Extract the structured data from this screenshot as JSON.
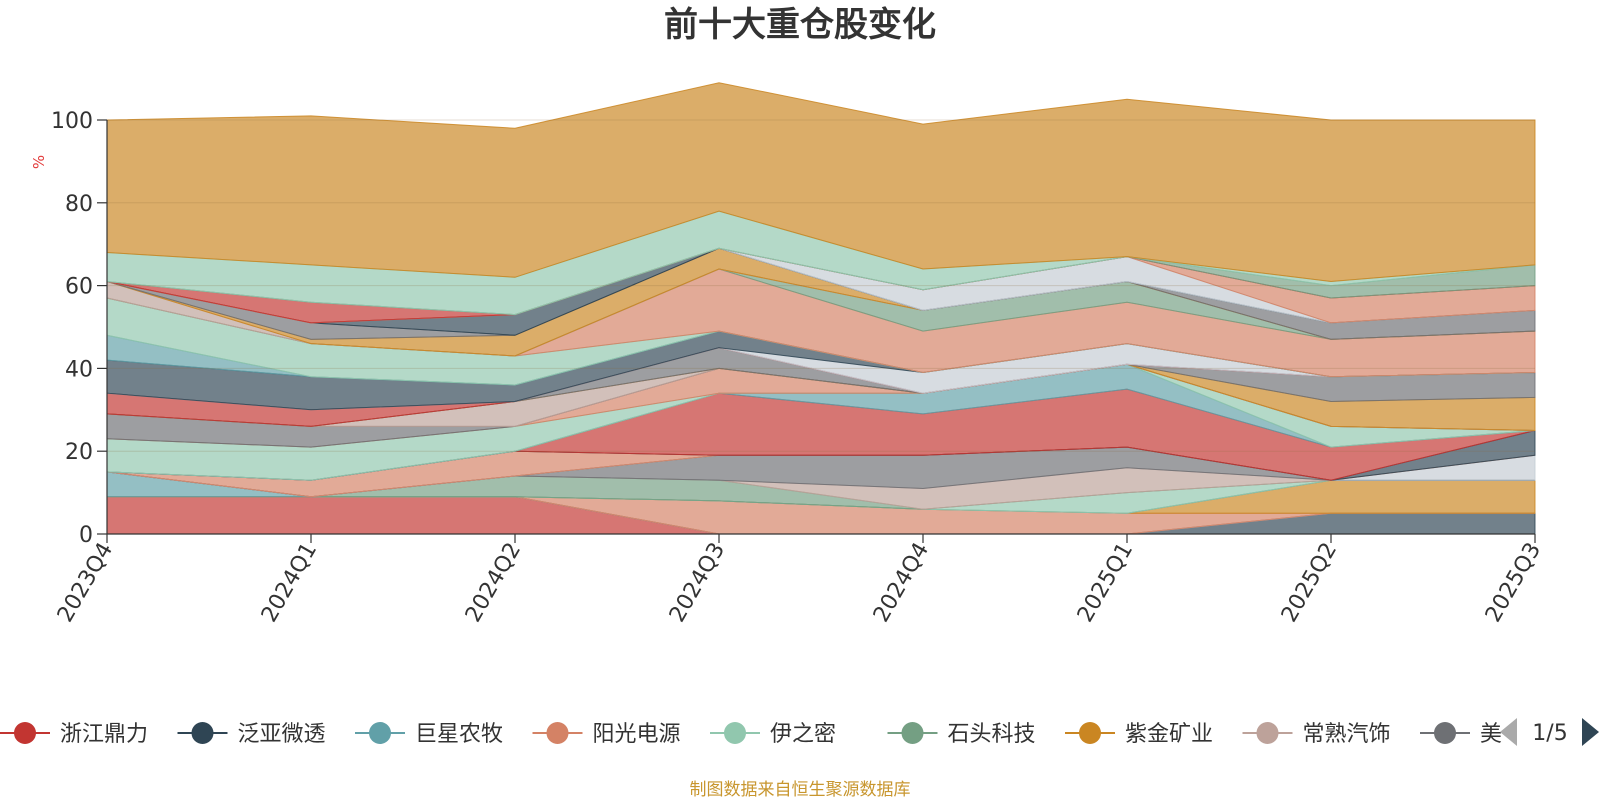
{
  "chart_data": {
    "type": "area",
    "stacked": true,
    "title": "前十大重仓股变化",
    "unit_label": "%",
    "source_note": "制图数据来自恒生聚源数据库",
    "ylim": [
      0,
      100
    ],
    "yticks": [
      0,
      20,
      40,
      60,
      80,
      100
    ],
    "grid": true,
    "x": [
      "2023Q4",
      "2024Q1",
      "2024Q2",
      "2024Q3",
      "2024Q4",
      "2025Q1",
      "2025Q2",
      "2025Q3"
    ],
    "series": [
      {
        "name": "浙江鼎力",
        "color": "#c23531",
        "values": [
          9,
          9,
          9,
          0,
          0,
          0,
          0,
          0
        ]
      },
      {
        "name": "",
        "color": "#2f4554",
        "values": [
          0,
          0,
          0,
          0,
          0,
          0,
          5,
          5
        ]
      },
      {
        "name": "",
        "color": "#c4ccd3",
        "values": [
          0,
          0,
          0,
          0,
          0,
          0,
          0,
          0
        ]
      },
      {
        "name": "",
        "color": "#d48265",
        "values": [
          0,
          0,
          0,
          8,
          6,
          5,
          0,
          0
        ]
      },
      {
        "name": "",
        "color": "#ca8622",
        "values": [
          0,
          0,
          0,
          0,
          0,
          0,
          8,
          8
        ]
      },
      {
        "name": "巨星农牧",
        "color": "#61a0a8",
        "values": [
          6,
          0,
          0,
          0,
          0,
          0,
          0,
          0
        ]
      },
      {
        "name": "伊之密",
        "color": "#91c7ae",
        "values": [
          0,
          0,
          0,
          0,
          0,
          5,
          0,
          0
        ]
      },
      {
        "name": "石头科技",
        "color": "#749f83",
        "values": [
          0,
          0,
          5,
          5,
          0,
          0,
          0,
          0
        ]
      },
      {
        "name": "常熟汽饰",
        "color": "#bda29a",
        "values": [
          0,
          0,
          0,
          0,
          5,
          6,
          0,
          0
        ]
      },
      {
        "name": "美",
        "color": "#6e7074",
        "values": [
          0,
          0,
          0,
          6,
          8,
          5,
          0,
          0
        ]
      },
      {
        "name": "",
        "color": "#2f4554",
        "values": [
          0,
          0,
          0,
          0,
          0,
          0,
          0,
          0
        ]
      },
      {
        "name": "",
        "color": "#c4ccd3",
        "values": [
          0,
          0,
          0,
          0,
          0,
          0,
          0,
          6
        ]
      },
      {
        "name": "阳光电源",
        "color": "#d48265",
        "values": [
          0,
          4,
          6,
          0,
          0,
          0,
          0,
          0
        ]
      },
      {
        "name": "",
        "color": "#2f4554",
        "values": [
          0,
          0,
          0,
          0,
          0,
          0,
          0,
          6
        ]
      },
      {
        "name": "",
        "color": "#c23531",
        "values": [
          0,
          0,
          0,
          15,
          10,
          14,
          8,
          0
        ]
      },
      {
        "name": "",
        "color": "#61a0a8",
        "values": [
          0,
          0,
          0,
          0,
          5,
          6,
          0,
          0
        ]
      },
      {
        "name": "",
        "color": "#91c7ae",
        "values": [
          8,
          8,
          6,
          0,
          0,
          0,
          5,
          0
        ]
      },
      {
        "name": "",
        "color": "#d48265",
        "values": [
          0,
          0,
          0,
          6,
          0,
          0,
          0,
          0
        ]
      },
      {
        "name": "",
        "color": "#6e7074",
        "values": [
          6,
          5,
          0,
          0,
          0,
          0,
          0,
          0
        ]
      },
      {
        "name": "",
        "color": "#bda29a",
        "values": [
          0,
          0,
          6,
          0,
          0,
          0,
          0,
          0
        ]
      },
      {
        "name": "",
        "color": "#ca8622",
        "values": [
          0,
          0,
          0,
          0,
          0,
          0,
          6,
          8
        ]
      },
      {
        "name": "",
        "color": "#6e7074",
        "values": [
          0,
          0,
          0,
          5,
          0,
          0,
          6,
          6
        ]
      },
      {
        "name": "",
        "color": "#c23531",
        "values": [
          5,
          4,
          0,
          0,
          0,
          0,
          0,
          0
        ]
      },
      {
        "name": "",
        "color": "#c4ccd3",
        "values": [
          0,
          0,
          0,
          0,
          5,
          5,
          0,
          0
        ]
      },
      {
        "name": "",
        "color": "#2f4554",
        "values": [
          8,
          8,
          4,
          4,
          0,
          0,
          0,
          0
        ]
      },
      {
        "name": "",
        "color": "#61a0a8",
        "values": [
          6,
          0,
          0,
          0,
          0,
          0,
          0,
          0
        ]
      },
      {
        "name": "",
        "color": "#91c7ae",
        "values": [
          9,
          8,
          7,
          0,
          0,
          0,
          0,
          0
        ]
      },
      {
        "name": "",
        "color": "#d48265",
        "values": [
          0,
          0,
          0,
          15,
          10,
          10,
          9,
          10
        ]
      },
      {
        "name": "",
        "color": "#749f83",
        "values": [
          0,
          0,
          0,
          0,
          5,
          5,
          0,
          0
        ]
      },
      {
        "name": "",
        "color": "#bda29a",
        "values": [
          4,
          0,
          0,
          0,
          0,
          0,
          0,
          0
        ]
      },
      {
        "name": "",
        "color": "#ca8622",
        "values": [
          0,
          1,
          5,
          5,
          0,
          0,
          0,
          0
        ]
      },
      {
        "name": "",
        "color": "#6e7074",
        "values": [
          0,
          4,
          0,
          0,
          0,
          0,
          4,
          5
        ]
      },
      {
        "name": "",
        "color": "#2f4554",
        "values": [
          0,
          0,
          5,
          0,
          0,
          0,
          0,
          0
        ]
      },
      {
        "name": "",
        "color": "#c4ccd3",
        "values": [
          0,
          0,
          0,
          0,
          5,
          6,
          0,
          0
        ]
      },
      {
        "name": "",
        "color": "#d48265",
        "values": [
          0,
          0,
          0,
          0,
          0,
          0,
          6,
          6
        ]
      },
      {
        "name": "",
        "color": "#c23531",
        "values": [
          0,
          5,
          0,
          0,
          0,
          0,
          0,
          0
        ]
      },
      {
        "name": "",
        "color": "#749f83",
        "values": [
          0,
          0,
          0,
          0,
          0,
          0,
          3,
          5
        ]
      },
      {
        "name": "",
        "color": "#91c7ae",
        "values": [
          7,
          9,
          9,
          9,
          5,
          0,
          1,
          0
        ]
      },
      {
        "name": "",
        "color": "#ca8622",
        "values": [
          32,
          36,
          36,
          31,
          35,
          38,
          39,
          35
        ]
      }
    ],
    "legend": {
      "position": "bottom",
      "entries": [
        {
          "name": "浙江鼎力",
          "color": "#c23531"
        },
        {
          "name": "泛亚微透",
          "color": "#2f4554"
        },
        {
          "name": "巨星农牧",
          "color": "#61a0a8"
        },
        {
          "name": "阳光电源",
          "color": "#d48265"
        },
        {
          "name": "伊之密",
          "color": "#91c7ae"
        },
        {
          "name": "石头科技",
          "color": "#749f83"
        },
        {
          "name": "紫金矿业",
          "color": "#ca8622"
        },
        {
          "name": "常熟汽饰",
          "color": "#bda29a"
        },
        {
          "name": "美",
          "color": "#6e7074"
        }
      ],
      "page": "1/5"
    }
  }
}
